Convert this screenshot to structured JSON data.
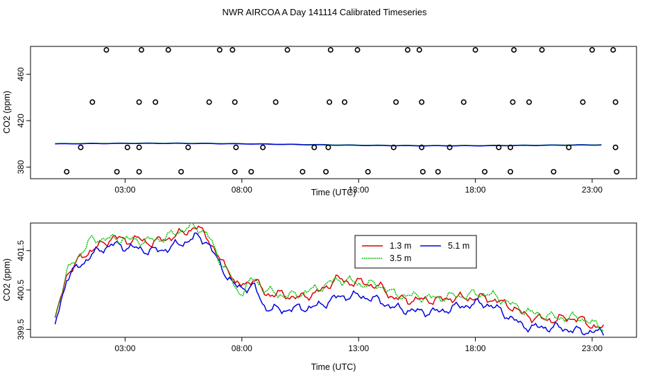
{
  "title": "NWR AIRCOA A  Day 141114  Calibrated Timeseries",
  "colors": {
    "red": "#dd0000",
    "green": "#00bb00",
    "blue": "#0000dd",
    "axis": "#000000"
  },
  "chart_data": [
    {
      "type": "scatter",
      "xlabel": "Time (UTC)",
      "ylabel": "CO2 (ppm)",
      "xlim": [
        -1.05,
        24.9
      ],
      "ylim": [
        370,
        484
      ],
      "xticks": [
        3,
        8,
        13,
        18,
        23
      ],
      "xtick_labels": [
        "03:00",
        "08:00",
        "13:00",
        "18:00",
        "23:00"
      ],
      "yticks": [
        380,
        420,
        460
      ],
      "ytick_labels": [
        "380",
        "420",
        "460"
      ],
      "circle_rows": [
        {
          "y": 376,
          "x": [
            0.5,
            2.65,
            3.6,
            5.4,
            7.7,
            8.4,
            10.6,
            11.6,
            13.4,
            15.75,
            16.4,
            18.4,
            19.5,
            21.35,
            24.05
          ]
        },
        {
          "y": 397,
          "x": [
            1.1,
            3.1,
            3.6,
            5.7,
            7.75,
            8.9,
            11.1,
            11.7,
            14.5,
            15.7,
            16.9,
            19.0,
            19.5,
            22.0,
            24.0
          ]
        },
        {
          "y": 436,
          "x": [
            1.6,
            3.6,
            4.3,
            6.6,
            7.7,
            9.45,
            11.75,
            12.4,
            14.6,
            15.7,
            17.5,
            19.6,
            20.3,
            22.6,
            24.0
          ]
        },
        {
          "y": 481,
          "x": [
            2.2,
            3.7,
            4.85,
            7.05,
            7.6,
            9.95,
            11.8,
            12.95,
            15.1,
            15.6,
            18.0,
            19.65,
            20.85,
            23.0,
            23.9
          ]
        }
      ],
      "series": [
        {
          "name": "green",
          "values_ref": "panel2"
        },
        {
          "name": "blue",
          "values_ref": "panel2"
        }
      ]
    },
    {
      "type": "line",
      "xlabel": "Time (UTC)",
      "ylabel": "CO2 (ppm)",
      "xlim": [
        -1.05,
        24.9
      ],
      "ylim": [
        399.3,
        402.2
      ],
      "xticks": [
        3,
        8,
        13,
        18,
        23
      ],
      "xtick_labels": [
        "03:00",
        "08:00",
        "13:00",
        "18:00",
        "23:00"
      ],
      "yticks": [
        399.5,
        400.5,
        401.5
      ],
      "ytick_labels": [
        "399.5",
        "400.5",
        "401.5"
      ],
      "legend": {
        "position": "top-center-right",
        "entries": [
          "1.3 m",
          "5.1 m",
          "3.5 m"
        ]
      },
      "x_keys": [
        0.0,
        0.5,
        1.0,
        1.5,
        2.0,
        2.5,
        3.0,
        3.5,
        4.0,
        4.5,
        5.0,
        5.5,
        6.0,
        6.5,
        7.0,
        7.5,
        7.7,
        8.0,
        8.5,
        9.0,
        9.5,
        10.0,
        10.5,
        11.0,
        11.5,
        12.0,
        12.5,
        13.0,
        13.5,
        14.0,
        14.5,
        15.0,
        15.5,
        16.0,
        16.5,
        17.0,
        17.5,
        18.0,
        18.5,
        19.0,
        19.5,
        20.0,
        20.5,
        21.0,
        21.5,
        22.0,
        22.5,
        23.0,
        23.5
      ],
      "series": [
        {
          "name": "1.3 m",
          "color": "#dd0000",
          "values": [
            399.7,
            400.9,
            401.25,
            401.5,
            401.65,
            401.85,
            401.75,
            401.8,
            401.7,
            401.75,
            401.85,
            401.95,
            402.1,
            401.9,
            401.3,
            401.0,
            400.65,
            400.6,
            400.8,
            400.4,
            400.4,
            400.35,
            400.3,
            400.4,
            400.5,
            400.8,
            400.7,
            400.7,
            400.65,
            400.55,
            400.3,
            400.25,
            400.25,
            400.25,
            400.25,
            400.3,
            400.3,
            400.3,
            400.3,
            400.2,
            400.1,
            399.9,
            399.8,
            399.75,
            399.75,
            399.8,
            399.75,
            399.6,
            399.5
          ]
        },
        {
          "name": "5.1 m",
          "color": "#0000dd",
          "values": [
            399.6,
            400.8,
            401.1,
            401.35,
            401.55,
            401.65,
            401.6,
            401.55,
            401.5,
            401.5,
            401.6,
            401.7,
            401.85,
            401.75,
            401.2,
            400.75,
            400.6,
            400.55,
            400.6,
            400.05,
            400.0,
            400.0,
            400.05,
            400.05,
            400.15,
            400.3,
            400.35,
            400.35,
            400.3,
            400.2,
            400.05,
            400.0,
            399.95,
            399.95,
            399.95,
            400.05,
            400.1,
            400.15,
            400.15,
            400.0,
            399.8,
            399.6,
            399.55,
            399.55,
            399.55,
            399.5,
            399.45,
            399.45,
            399.4
          ]
        },
        {
          "name": "3.5 m",
          "color": "#00bb00",
          "values": [
            399.8,
            400.95,
            401.35,
            401.75,
            401.8,
            401.8,
            401.8,
            401.75,
            401.75,
            401.8,
            401.9,
            402.05,
            402.1,
            401.95,
            401.3,
            400.9,
            400.5,
            400.45,
            400.8,
            400.5,
            400.4,
            400.35,
            400.4,
            400.5,
            400.6,
            400.75,
            400.75,
            400.65,
            400.65,
            400.6,
            400.4,
            400.35,
            400.35,
            400.3,
            400.3,
            400.35,
            400.35,
            400.4,
            400.4,
            400.3,
            400.15,
            400.0,
            399.9,
            399.85,
            399.8,
            399.8,
            399.8,
            399.65,
            399.55
          ]
        }
      ]
    }
  ]
}
